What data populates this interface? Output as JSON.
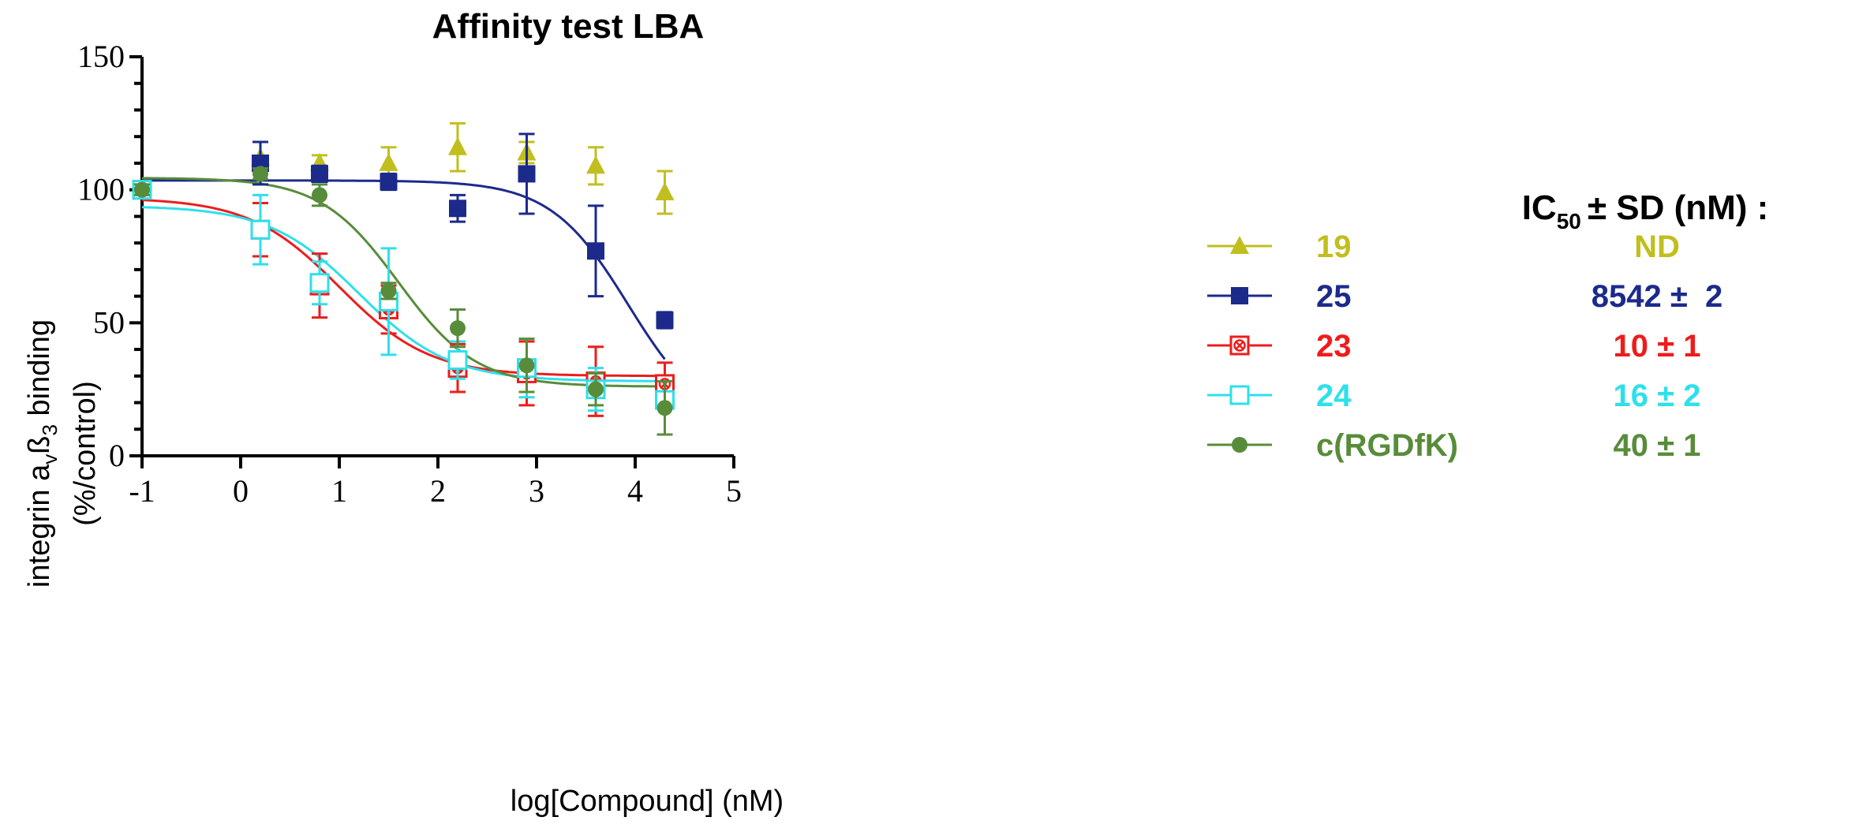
{
  "chart_data": {
    "type": "scatter",
    "title": "Affinity test LBA",
    "xlabel": "log[Compound] (nM)",
    "ylabel_main": "integrin a",
    "ylabel_sub1": "v",
    "ylabel_mid": "ß",
    "ylabel_sub2": "3",
    "ylabel_end": " binding",
    "ylabel2": "(%/control)",
    "xlim": [
      -1,
      5
    ],
    "ylim": [
      0,
      150
    ],
    "xticks": [
      -1,
      0,
      1,
      2,
      3,
      4,
      5
    ],
    "xtick_labels": [
      "-1",
      "0",
      "1",
      "2",
      "3",
      "4",
      "5"
    ],
    "yticks": [
      0,
      50,
      100,
      150
    ],
    "ytick_labels": [
      "0",
      "50",
      "100",
      "150"
    ],
    "fit": "sigmoidal dose-response curves",
    "ic50_header": "IC",
    "ic50_header_sub": "50",
    "ic50_header_rest": "± SD (nM) :",
    "series": [
      {
        "name": "19",
        "color": "#c0bf1f",
        "marker": "triangle",
        "ic50": "ND",
        "x": [
          -1,
          0.2,
          0.8,
          1.5,
          2.2,
          2.9,
          3.6,
          4.3
        ],
        "y": [
          100,
          112,
          110,
          110,
          116,
          114,
          109,
          99
        ],
        "err": [
          3,
          6,
          3,
          6,
          9,
          4,
          7,
          8
        ],
        "curve": null
      },
      {
        "name": "25",
        "color": "#1c2a8c",
        "marker": "square",
        "ic50": "8542 ±  2",
        "x": [
          -1,
          0.2,
          0.8,
          1.5,
          2.2,
          2.9,
          3.6,
          4.3
        ],
        "y": [
          100,
          110,
          106,
          103,
          93,
          106,
          77,
          51
        ],
        "err": [
          3,
          8,
          3,
          3,
          5,
          15,
          17,
          3
        ],
        "curve": {
          "top": 103.5,
          "bottom": 10,
          "logic50": 3.93,
          "hill": 1.1
        }
      },
      {
        "name": "23",
        "color": "#ee1c1c",
        "marker": "square-x",
        "ic50": "10 ± 1",
        "x": [
          -1,
          0.2,
          0.8,
          1.5,
          2.2,
          2.9,
          3.6,
          4.3
        ],
        "y": [
          100,
          85,
          64,
          55,
          33,
          31,
          28,
          27
        ],
        "err": [
          3,
          10,
          12,
          9,
          9,
          12,
          13,
          8
        ],
        "curve": {
          "top": 97,
          "bottom": 30,
          "logic50": 1.0,
          "hill": 0.95
        }
      },
      {
        "name": "24",
        "color": "#2de0ea",
        "marker": "square-open",
        "ic50": "16 ± 2",
        "x": [
          -1,
          0.2,
          0.8,
          1.5,
          2.2,
          2.9,
          3.6,
          4.3
        ],
        "y": [
          100,
          85,
          65,
          58,
          36,
          33,
          25,
          21
        ],
        "err": [
          3,
          13,
          8,
          20,
          7,
          11,
          8,
          3
        ],
        "curve": {
          "top": 94,
          "bottom": 28,
          "logic50": 1.2,
          "hill": 0.95
        }
      },
      {
        "name": "c(RGDfK)",
        "color": "#588c3a",
        "marker": "circle",
        "ic50": "40 ± 1",
        "x": [
          -1,
          0.2,
          0.8,
          1.5,
          2.2,
          2.9,
          3.6,
          4.3
        ],
        "y": [
          100,
          106,
          98,
          62,
          48,
          34,
          25,
          18
        ],
        "err": [
          2,
          2,
          4,
          3,
          7,
          10,
          6,
          10
        ],
        "curve": {
          "top": 104.5,
          "bottom": 26,
          "logic50": 1.6,
          "hill": 1.1
        }
      }
    ]
  }
}
